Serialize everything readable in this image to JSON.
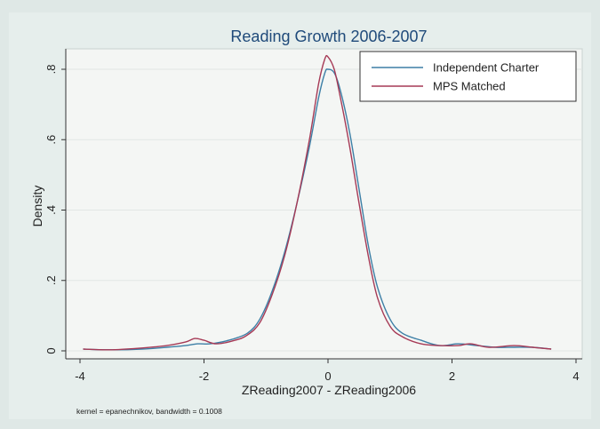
{
  "chart_data": {
    "type": "line",
    "title": "Reading Growth 2006-2007",
    "xlabel": "ZReading2007 - ZReading2006",
    "ylabel": "Density",
    "note": "kernel = epanechnikov, bandwidth = 0.1008",
    "xlim": [
      -4,
      4
    ],
    "ylim": [
      0,
      0.85
    ],
    "x_ticks": [
      -4,
      -2,
      0,
      2,
      4
    ],
    "x_tick_labels": [
      "-4",
      "-2",
      "0",
      "2",
      "4"
    ],
    "y_ticks": [
      0,
      0.2,
      0.4,
      0.6,
      0.8
    ],
    "y_tick_labels": [
      "0",
      ".2",
      ".4",
      ".6",
      ".8"
    ],
    "grid": true,
    "legend_position": "top-right",
    "series": [
      {
        "name": "Independent Charter",
        "color": "#3d7fa6",
        "x": [
          -3.95,
          -3.5,
          -3.0,
          -2.6,
          -2.3,
          -2.1,
          -1.9,
          -1.6,
          -1.3,
          -1.1,
          -0.9,
          -0.7,
          -0.5,
          -0.3,
          -0.15,
          -0.05,
          0.0,
          0.1,
          0.2,
          0.35,
          0.5,
          0.65,
          0.8,
          1.0,
          1.2,
          1.5,
          1.8,
          2.1,
          2.4,
          2.7,
          3.0,
          3.3,
          3.6
        ],
        "y": [
          0.005,
          0.003,
          0.005,
          0.01,
          0.015,
          0.02,
          0.02,
          0.03,
          0.05,
          0.09,
          0.17,
          0.28,
          0.42,
          0.58,
          0.72,
          0.79,
          0.8,
          0.79,
          0.74,
          0.62,
          0.46,
          0.3,
          0.18,
          0.09,
          0.05,
          0.03,
          0.015,
          0.02,
          0.015,
          0.01,
          0.01,
          0.01,
          0.005
        ]
      },
      {
        "name": "MPS Matched",
        "color": "#a63a56",
        "x": [
          -3.95,
          -3.5,
          -3.0,
          -2.6,
          -2.3,
          -2.15,
          -2.0,
          -1.8,
          -1.5,
          -1.3,
          -1.1,
          -0.9,
          -0.7,
          -0.5,
          -0.3,
          -0.15,
          -0.05,
          0.0,
          0.1,
          0.2,
          0.35,
          0.5,
          0.65,
          0.8,
          1.0,
          1.2,
          1.5,
          1.8,
          2.1,
          2.3,
          2.6,
          3.0,
          3.3,
          3.6
        ],
        "y": [
          0.005,
          0.003,
          0.008,
          0.015,
          0.025,
          0.035,
          0.03,
          0.02,
          0.03,
          0.045,
          0.08,
          0.16,
          0.27,
          0.42,
          0.6,
          0.76,
          0.83,
          0.835,
          0.8,
          0.72,
          0.58,
          0.42,
          0.27,
          0.15,
          0.07,
          0.04,
          0.02,
          0.015,
          0.015,
          0.02,
          0.01,
          0.015,
          0.01,
          0.005
        ]
      }
    ]
  }
}
